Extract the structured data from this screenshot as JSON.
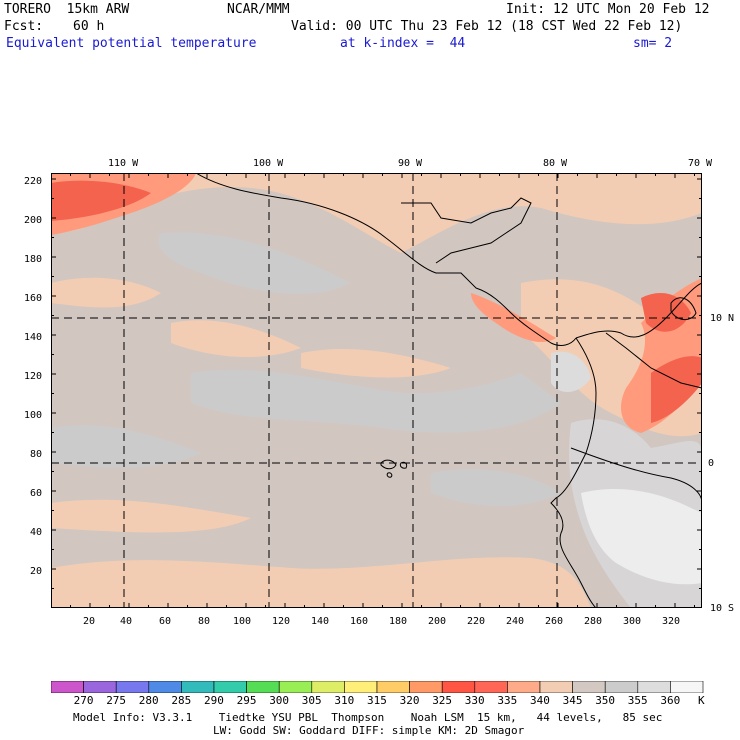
{
  "header": {
    "model": "TORERO  15km ARW",
    "center": "NCAR/MMM",
    "init": "Init: 12 UTC Mon 20 Feb 12",
    "fcst_label": "Fcst:",
    "fcst_value": "60 h",
    "valid": "Valid: 00 UTC Thu 23 Feb 12 (18 CST Wed 22 Feb 12)",
    "field": "Equivalent potential temperature",
    "level": "at k-index =  44",
    "smooth": "sm= 2"
  },
  "map": {
    "lon_labels": [
      "110 W",
      "100 W",
      "90 W",
      "80 W",
      "70 W"
    ],
    "lat_labels": [
      "10 N",
      "0",
      "10 S"
    ],
    "y_ticks": [
      "220",
      "200",
      "180",
      "160",
      "140",
      "120",
      "100",
      "80",
      "60",
      "40",
      "20"
    ],
    "x_ticks": [
      "20",
      "40",
      "60",
      "80",
      "100",
      "120",
      "140",
      "160",
      "180",
      "200",
      "220",
      "240",
      "260",
      "280",
      "300",
      "320"
    ]
  },
  "colorbar": {
    "unit": "K",
    "labels": [
      "270",
      "275",
      "280",
      "285",
      "290",
      "295",
      "300",
      "305",
      "310",
      "315",
      "320",
      "325",
      "330",
      "335",
      "340",
      "345",
      "350",
      "355",
      "360"
    ],
    "colors": [
      "#cc55cc",
      "#9966dd",
      "#7777ee",
      "#4e8ae6",
      "#33bbbb",
      "#33ccaa",
      "#55dd55",
      "#99ee55",
      "#ddee66",
      "#ffee77",
      "#ffcc66",
      "#ff9966",
      "#ff5544",
      "#ff6655",
      "#ffaa88",
      "#f3cdb3",
      "#d4c8c2",
      "#cccccc",
      "#dddddd",
      "#f6f6f6"
    ]
  },
  "footer": {
    "line1": "Model Info: V3.3.1    Tiedtke YSU PBL  Thompson    Noah LSM  15 km,   44 levels,   85 sec",
    "line2": "LW: Godd SW: Goddard DIFF: simple KM: 2D Smagor"
  }
}
